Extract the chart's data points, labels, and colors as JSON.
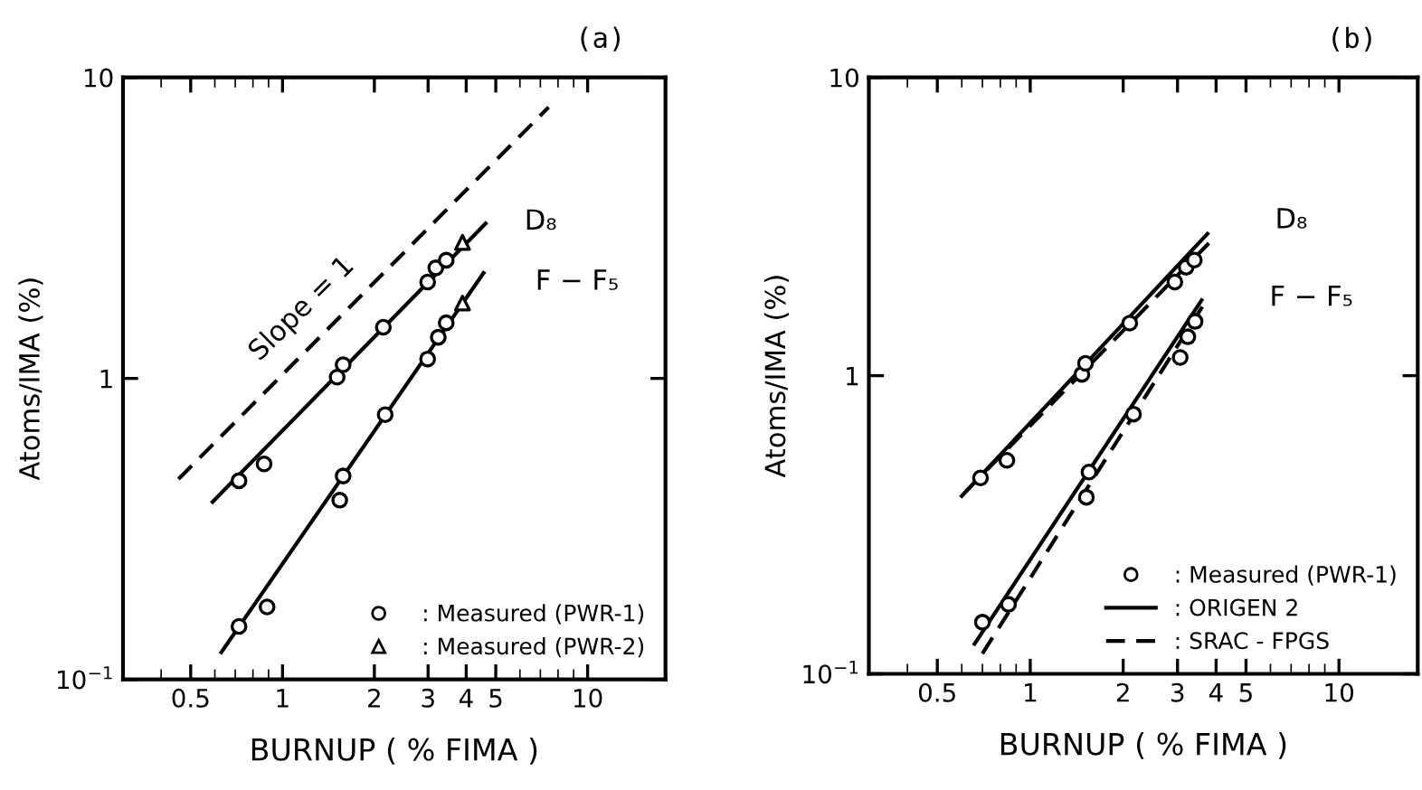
{
  "chart_data": [
    {
      "type": "scatter",
      "title": "(a)",
      "xlabel": "BURNUP ( % FIMA )",
      "ylabel": "Atoms/IMA (%)",
      "log": "xy",
      "grid": false,
      "legend": "bottom right",
      "xlim": [
        0.3,
        18
      ],
      "ylim": [
        0.1,
        10
      ],
      "xticks": [
        0.5,
        1,
        2,
        3,
        4,
        5,
        10
      ],
      "yticks": [
        {
          "value": 0.1,
          "label": "10$^{−1}$"
        },
        1,
        10
      ],
      "series": [
        {
          "name": ": Measured (PWR-1)",
          "marker": "circle",
          "color": "#000000",
          "x": [
            0.72,
            0.87,
            1.51,
            1.58,
            2.14,
            2.99,
            3.18,
            3.44,
            0.72,
            0.89,
            1.54,
            1.58,
            2.17,
            2.99,
            3.24,
            3.44
          ],
          "values": [
            0.457,
            0.52,
            1.01,
            1.11,
            1.48,
            2.09,
            2.33,
            2.47,
            0.15,
            0.174,
            0.394,
            0.474,
            0.758,
            1.16,
            1.37,
            1.53
          ]
        },
        {
          "name": ": Measured (PWR-2)",
          "marker": "triangle",
          "color": "#000000",
          "x": [
            3.89,
            3.89
          ],
          "values": [
            2.83,
            1.78
          ]
        },
        {
          "type": "line",
          "line_style": "solid",
          "color": "#000000",
          "x": [
            0.59,
            4.63
          ],
          "values": [
            0.389,
            3.27
          ]
        },
        {
          "type": "line",
          "line_style": "solid",
          "color": "#000000",
          "x": [
            0.63,
            4.56
          ],
          "values": [
            0.123,
            2.24
          ]
        },
        {
          "type": "line",
          "line_style": "dashed",
          "color": "#000000",
          "x": [
            0.456,
            7.45
          ],
          "values": [
            0.463,
            7.96
          ]
        }
      ],
      "annotations": [
        "D₈",
        "F − F₅",
        "Slope = 1"
      ]
    },
    {
      "type": "scatter",
      "title": "(b)",
      "xlabel": "BURNUP ( % FIMA )",
      "ylabel": "Atoms/IMA (%)",
      "log": "xy",
      "grid": false,
      "legend": "bottom right",
      "xlim": [
        0.3,
        18
      ],
      "ylim": [
        0.1,
        10
      ],
      "xticks": [
        0.5,
        1,
        2,
        3,
        4,
        5,
        10
      ],
      "yticks": [
        {
          "value": 0.1,
          "label": "10$^{−1}$"
        },
        1,
        10
      ],
      "series": [
        {
          "name": ": Measured (PWR-1)",
          "marker": "circle",
          "color": "#000000",
          "x": [
            0.69,
            0.84,
            1.47,
            1.51,
            2.1,
            2.94,
            3.2,
            3.4,
            0.7,
            0.85,
            1.52,
            1.55,
            2.16,
            3.06,
            3.24,
            3.42
          ],
          "values": [
            0.454,
            0.52,
            1.01,
            1.1,
            1.5,
            2.06,
            2.31,
            2.44,
            0.149,
            0.171,
            0.391,
            0.475,
            0.743,
            1.15,
            1.35,
            1.52
          ]
        },
        {
          "name": ": ORIGEN 2",
          "type": "line",
          "line_style": "solid",
          "color": "#000000",
          "x": [
            0.6,
            3.75
          ],
          "values": [
            0.395,
            2.99
          ]
        },
        {
          "type": "line",
          "line_style": "solid",
          "color": "#000000",
          "x": [
            0.66,
            3.59
          ],
          "values": [
            0.126,
            1.79
          ]
        },
        {
          "name": ": SRAC - FPGS",
          "type": "line",
          "line_style": "dashed",
          "color": "#000000",
          "x": [
            0.62,
            3.79
          ],
          "values": [
            0.41,
            2.78
          ]
        },
        {
          "type": "line",
          "line_style": "dashed",
          "color": "#000000",
          "x": [
            0.7,
            3.67
          ],
          "values": [
            0.117,
            1.75
          ]
        }
      ],
      "annotations": [
        "D₈",
        "F − F₅"
      ]
    }
  ]
}
